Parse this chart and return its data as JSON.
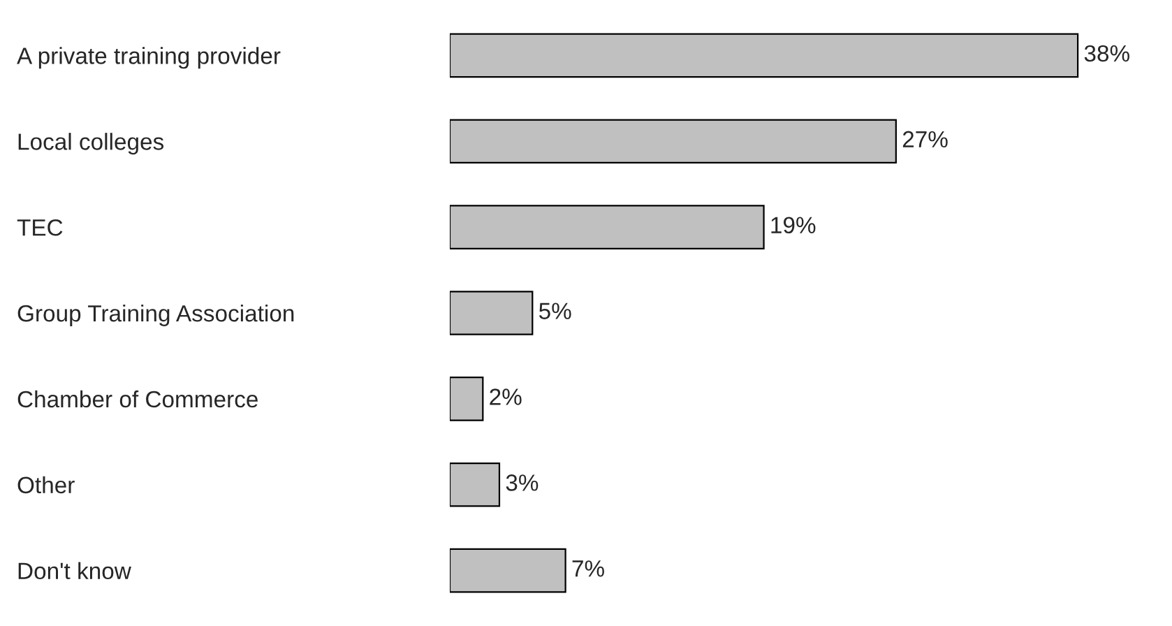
{
  "chart_data": {
    "type": "bar",
    "orientation": "horizontal",
    "categories": [
      "A private training provider",
      "Local colleges",
      "TEC",
      "Group Training Association",
      "Chamber of Commerce",
      "Other",
      "Don't know"
    ],
    "values": [
      38,
      27,
      19,
      5,
      2,
      3,
      7
    ],
    "value_labels": [
      "38%",
      "27%",
      "19%",
      "5%",
      "2%",
      "3%",
      "7%"
    ],
    "color": "#c0c0c0",
    "grid": false,
    "legend": false
  }
}
